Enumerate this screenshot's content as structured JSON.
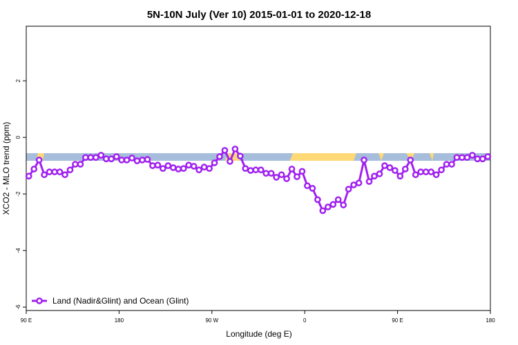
{
  "chart_data": {
    "type": "line",
    "title": "5N-10N July (Ver 10)   2015-01-01 to 2020-12-18",
    "xlabel": "Longitude (deg E)",
    "ylabel": "XCO2 - MLO trend (ppm)",
    "xlim": [
      90,
      540
    ],
    "xticks": [
      {
        "value": 90,
        "label": "90 E"
      },
      {
        "value": 180,
        "label": "180"
      },
      {
        "value": 270,
        "label": "90 W"
      },
      {
        "value": 360,
        "label": "0"
      },
      {
        "value": 450,
        "label": "90 E"
      },
      {
        "value": 540,
        "label": "180"
      }
    ],
    "ylim": [
      -6.12,
      3.93
    ],
    "yticks": [
      2,
      0,
      -2,
      -4,
      -6
    ],
    "legend": "lower left",
    "x": [
      92.5,
      97.5,
      102.5,
      107.5,
      112.5,
      117.5,
      122.5,
      127.5,
      132.5,
      137.5,
      142.5,
      147.5,
      152.5,
      157.5,
      162.5,
      167.5,
      172.5,
      177.5,
      182.5,
      187.5,
      192.5,
      197.5,
      202.5,
      207.5,
      212.5,
      217.5,
      222.5,
      227.5,
      232.5,
      237.5,
      242.5,
      247.5,
      252.5,
      257.5,
      262.5,
      267.5,
      272.5,
      277.5,
      282.5,
      287.5,
      292.5,
      297.5,
      302.5,
      307.5,
      312.5,
      317.5,
      322.5,
      327.5,
      332.5,
      337.5,
      342.5,
      347.5,
      352.5,
      357.5,
      362.5,
      367.5,
      372.5,
      377.5,
      382.5,
      387.5,
      392.5,
      397.5,
      402.5,
      407.5,
      412.5,
      417.5,
      422.5,
      427.5,
      432.5,
      437.5,
      442.5,
      447.5,
      452.5,
      457.5,
      462.5,
      467.5,
      472.5,
      477.5,
      482.5,
      487.5,
      492.5,
      497.5,
      502.5,
      507.5,
      512.5,
      517.5,
      522.5,
      527.5,
      532.5,
      537.5
    ],
    "series": [
      {
        "name": "Land (Nadir&Glint) and Ocean (Glint)",
        "color": "#a020f0",
        "values": [
          -1.37,
          -1.12,
          -0.8,
          -1.32,
          -1.22,
          -1.22,
          -1.22,
          -1.32,
          -1.15,
          -0.95,
          -0.95,
          -0.71,
          -0.71,
          -0.71,
          -0.63,
          -0.76,
          -0.76,
          -0.68,
          -0.8,
          -0.8,
          -0.73,
          -0.83,
          -0.8,
          -0.78,
          -1.0,
          -0.98,
          -1.1,
          -1.0,
          -1.07,
          -1.12,
          -1.1,
          -0.98,
          -1.02,
          -1.15,
          -1.05,
          -1.1,
          -0.9,
          -0.68,
          -0.46,
          -0.85,
          -0.41,
          -0.66,
          -1.1,
          -1.17,
          -1.15,
          -1.15,
          -1.27,
          -1.27,
          -1.41,
          -1.32,
          -1.46,
          -1.12,
          -1.39,
          -1.2,
          -1.71,
          -1.8,
          -2.2,
          -2.59,
          -2.46,
          -2.37,
          -2.2,
          -2.39,
          -1.83,
          -1.68,
          -1.61,
          -0.8,
          -1.56,
          -1.37,
          -1.29,
          -1.0,
          -1.07,
          -1.17,
          -1.37,
          -1.12,
          -0.8,
          -1.32,
          -1.22,
          -1.22,
          -1.22,
          -1.32,
          -1.15,
          -0.95,
          -0.95,
          -0.71,
          -0.71,
          -0.71,
          -0.63,
          -0.76,
          -0.76,
          -0.68
        ]
      }
    ]
  }
}
